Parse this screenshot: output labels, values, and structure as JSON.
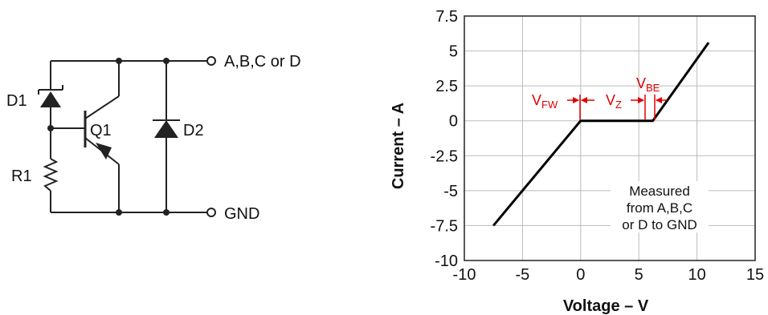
{
  "circuit": {
    "labels": {
      "d1": "D1",
      "q1": "Q1",
      "d2": "D2",
      "r1": "R1",
      "out_pin": "A,B,C or D",
      "gnd_pin": "GND"
    }
  },
  "chart_data": {
    "type": "line",
    "title": "",
    "xlabel": "Voltage – V",
    "ylabel": "Current – A",
    "xlim": [
      -10,
      15
    ],
    "ylim": [
      -10,
      7.5
    ],
    "x_ticks": [
      -10,
      -5,
      0,
      5,
      10,
      15
    ],
    "x_tick_labels": [
      "-10",
      "-5",
      "0",
      "5",
      "10",
      "15"
    ],
    "y_ticks": [
      -10,
      -7.5,
      -5,
      -2.5,
      0,
      2.5,
      5,
      7.5
    ],
    "y_tick_labels": [
      "-10",
      "-7.5",
      "-5",
      "-2.5",
      "0",
      "2.5",
      "5",
      "7.5"
    ],
    "grid": true,
    "series": [
      {
        "values": [
          [
            -7.5,
            -7.5
          ],
          [
            0,
            0
          ],
          [
            6.2,
            0
          ],
          [
            11,
            5.6
          ]
        ]
      }
    ],
    "annotations": {
      "vfw": {
        "base": "V",
        "sub": "FW"
      },
      "vz": {
        "base": "V",
        "sub": "Z"
      },
      "vbe": {
        "base": "V",
        "sub": "BE"
      },
      "note_lines": [
        "Measured",
        "from A,B,C",
        "or D to GND"
      ]
    },
    "colors": {
      "line": "#000000",
      "annotation": "#e00000",
      "grid": "#bbbbbb"
    }
  }
}
